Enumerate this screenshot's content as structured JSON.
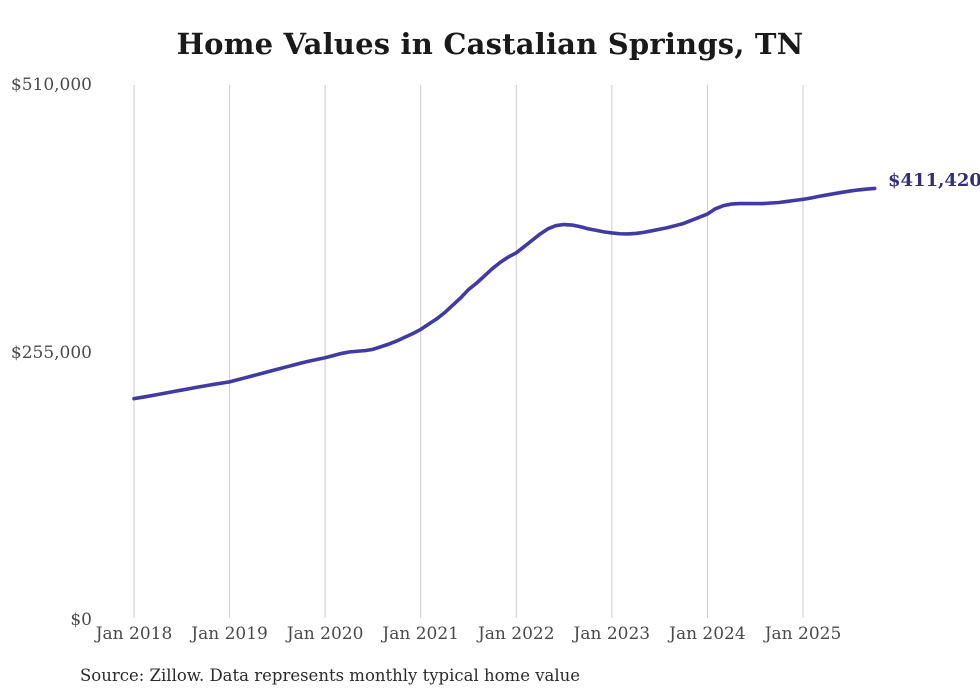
{
  "chart_data": {
    "type": "line",
    "title": "Home Values in Castalian Springs, TN",
    "xlabel": "",
    "ylabel": "",
    "ylim": [
      0,
      510000
    ],
    "grid": "vertical-only",
    "legend": "none",
    "interval": "monthly",
    "x_start": "Jan 2018",
    "x_end": "Oct 2025",
    "end_annotation": "$411,420",
    "end_value": 411420,
    "source": "Source: Zillow. Data represents monthly typical home value",
    "colors": {
      "line": "#423aa3",
      "end_label": "#322d7c",
      "grid": "#cccccc",
      "axis_text": "#4a4a4a",
      "title_text": "#1a1a1a",
      "source_text": "#2b2b2b"
    },
    "y_ticks": [
      {
        "label": "$0",
        "value": 0
      },
      {
        "label": "$255,000",
        "value": 255000
      },
      {
        "label": "$510,000",
        "value": 510000
      }
    ],
    "x_ticks": [
      {
        "label": "Jan 2018",
        "month_index": 0
      },
      {
        "label": "Jan 2019",
        "month_index": 12
      },
      {
        "label": "Jan 2020",
        "month_index": 24
      },
      {
        "label": "Jan 2021",
        "month_index": 36
      },
      {
        "label": "Jan 2022",
        "month_index": 48
      },
      {
        "label": "Jan 2023",
        "month_index": 60
      },
      {
        "label": "Jan 2024",
        "month_index": 72
      },
      {
        "label": "Jan 2025",
        "month_index": 84
      }
    ],
    "series": [
      {
        "name": "Monthly typical home value",
        "start": "Jan 2018",
        "values": [
          211000,
          212300,
          213600,
          215000,
          216400,
          217800,
          219200,
          220600,
          222000,
          223300,
          224600,
          225800,
          227000,
          229000,
          231000,
          233000,
          235000,
          237000,
          239000,
          241000,
          243000,
          245000,
          246800,
          248400,
          250000,
          252000,
          254000,
          255500,
          256200,
          256800,
          258000,
          260500,
          263000,
          266000,
          269500,
          273000,
          277000,
          282000,
          287000,
          293000,
          300000,
          307000,
          315000,
          321000,
          328000,
          335000,
          341000,
          346000,
          350000,
          356000,
          362000,
          368000,
          373000,
          376000,
          377000,
          376500,
          375000,
          373000,
          371500,
          370000,
          369000,
          368200,
          368000,
          368500,
          369500,
          371000,
          372500,
          374000,
          376000,
          378000,
          381000,
          384000,
          387000,
          392000,
          395000,
          396500,
          397000,
          397000,
          397000,
          397000,
          397500,
          398000,
          399000,
          400000,
          401000,
          402300,
          403800,
          405200,
          406500,
          407800,
          409000,
          410000,
          410800,
          411420
        ]
      }
    ]
  }
}
